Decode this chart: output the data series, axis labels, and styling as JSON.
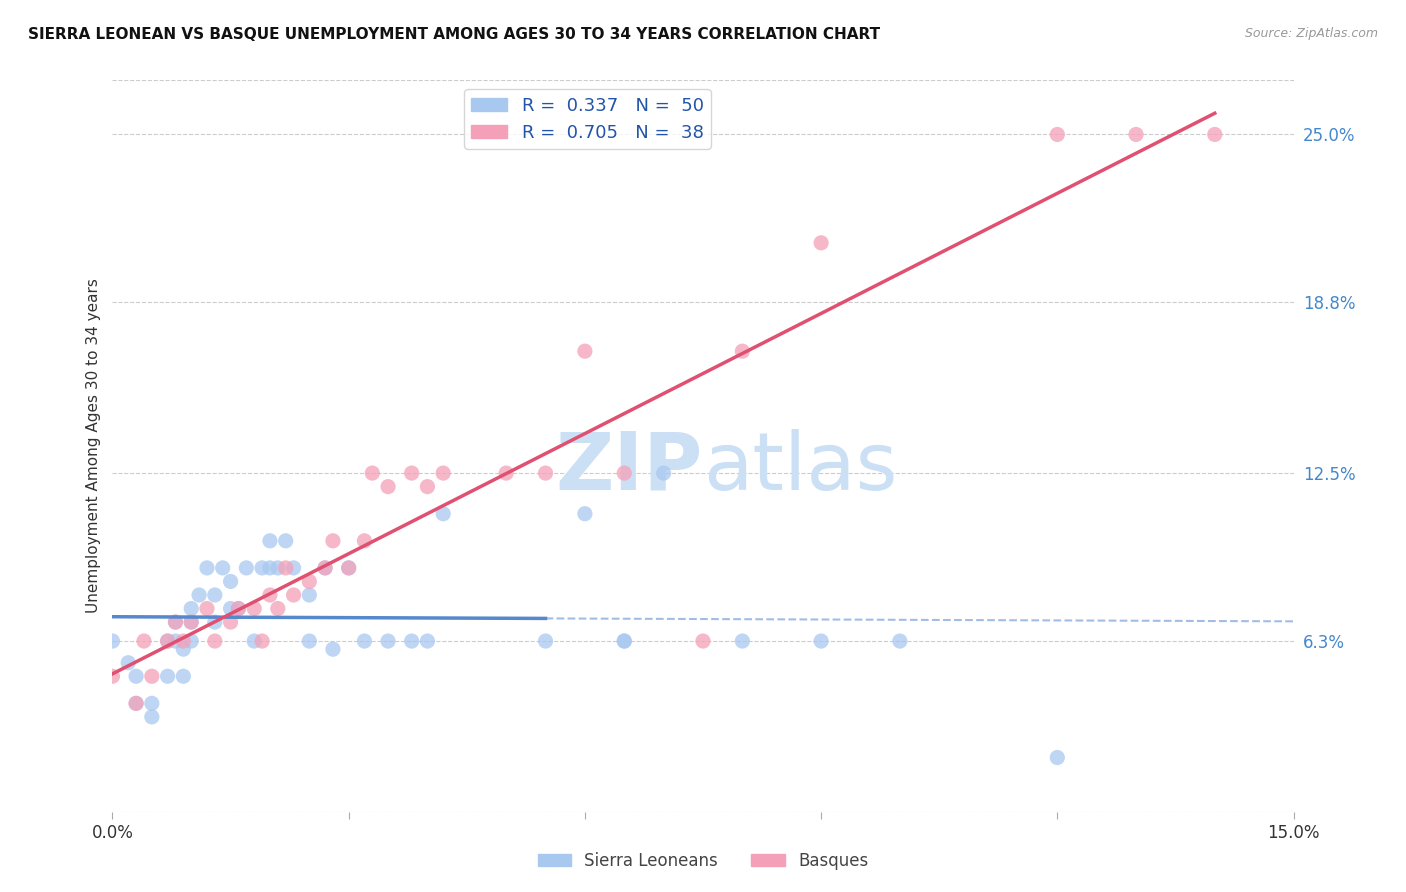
{
  "title": "SIERRA LEONEAN VS BASQUE UNEMPLOYMENT AMONG AGES 30 TO 34 YEARS CORRELATION CHART",
  "source": "Source: ZipAtlas.com",
  "ylabel": "Unemployment Among Ages 30 to 34 years",
  "xlim": [
    0.0,
    0.15
  ],
  "ylim": [
    0.0,
    0.27
  ],
  "y_tick_labels_right": [
    "6.3%",
    "12.5%",
    "18.8%",
    "25.0%"
  ],
  "y_tick_vals_right": [
    0.063,
    0.125,
    0.188,
    0.25
  ],
  "sierra_color": "#a8c8f0",
  "basque_color": "#f4a0b8",
  "sierra_line_color": "#5588cc",
  "basque_line_color": "#e05070",
  "watermark_color": "#cce0f5",
  "sierra_x": [
    0.0,
    0.002,
    0.003,
    0.003,
    0.005,
    0.005,
    0.007,
    0.007,
    0.008,
    0.008,
    0.009,
    0.009,
    0.01,
    0.01,
    0.01,
    0.011,
    0.012,
    0.013,
    0.013,
    0.014,
    0.015,
    0.015,
    0.016,
    0.017,
    0.018,
    0.019,
    0.02,
    0.02,
    0.021,
    0.022,
    0.023,
    0.025,
    0.025,
    0.027,
    0.028,
    0.03,
    0.032,
    0.035,
    0.038,
    0.04,
    0.042,
    0.055,
    0.06,
    0.065,
    0.065,
    0.07,
    0.08,
    0.09,
    0.1,
    0.12
  ],
  "sierra_y": [
    0.063,
    0.055,
    0.05,
    0.04,
    0.04,
    0.035,
    0.063,
    0.05,
    0.063,
    0.07,
    0.06,
    0.05,
    0.075,
    0.07,
    0.063,
    0.08,
    0.09,
    0.07,
    0.08,
    0.09,
    0.075,
    0.085,
    0.075,
    0.09,
    0.063,
    0.09,
    0.09,
    0.1,
    0.09,
    0.1,
    0.09,
    0.08,
    0.063,
    0.09,
    0.06,
    0.09,
    0.063,
    0.063,
    0.063,
    0.063,
    0.11,
    0.063,
    0.11,
    0.063,
    0.063,
    0.125,
    0.063,
    0.063,
    0.063,
    0.02
  ],
  "basque_x": [
    0.0,
    0.003,
    0.004,
    0.005,
    0.007,
    0.008,
    0.009,
    0.01,
    0.012,
    0.013,
    0.015,
    0.016,
    0.018,
    0.019,
    0.02,
    0.021,
    0.022,
    0.023,
    0.025,
    0.027,
    0.028,
    0.03,
    0.032,
    0.033,
    0.035,
    0.038,
    0.04,
    0.042,
    0.05,
    0.055,
    0.06,
    0.065,
    0.075,
    0.08,
    0.09,
    0.12,
    0.13,
    0.14
  ],
  "basque_y": [
    0.05,
    0.04,
    0.063,
    0.05,
    0.063,
    0.07,
    0.063,
    0.07,
    0.075,
    0.063,
    0.07,
    0.075,
    0.075,
    0.063,
    0.08,
    0.075,
    0.09,
    0.08,
    0.085,
    0.09,
    0.1,
    0.09,
    0.1,
    0.125,
    0.12,
    0.125,
    0.12,
    0.125,
    0.125,
    0.125,
    0.17,
    0.125,
    0.063,
    0.17,
    0.21,
    0.25,
    0.25,
    0.25
  ],
  "background_color": "#ffffff",
  "grid_color": "#cccccc",
  "legend_label1": "R =  0.337   N =  50",
  "legend_label2": "R =  0.705   N =  38"
}
